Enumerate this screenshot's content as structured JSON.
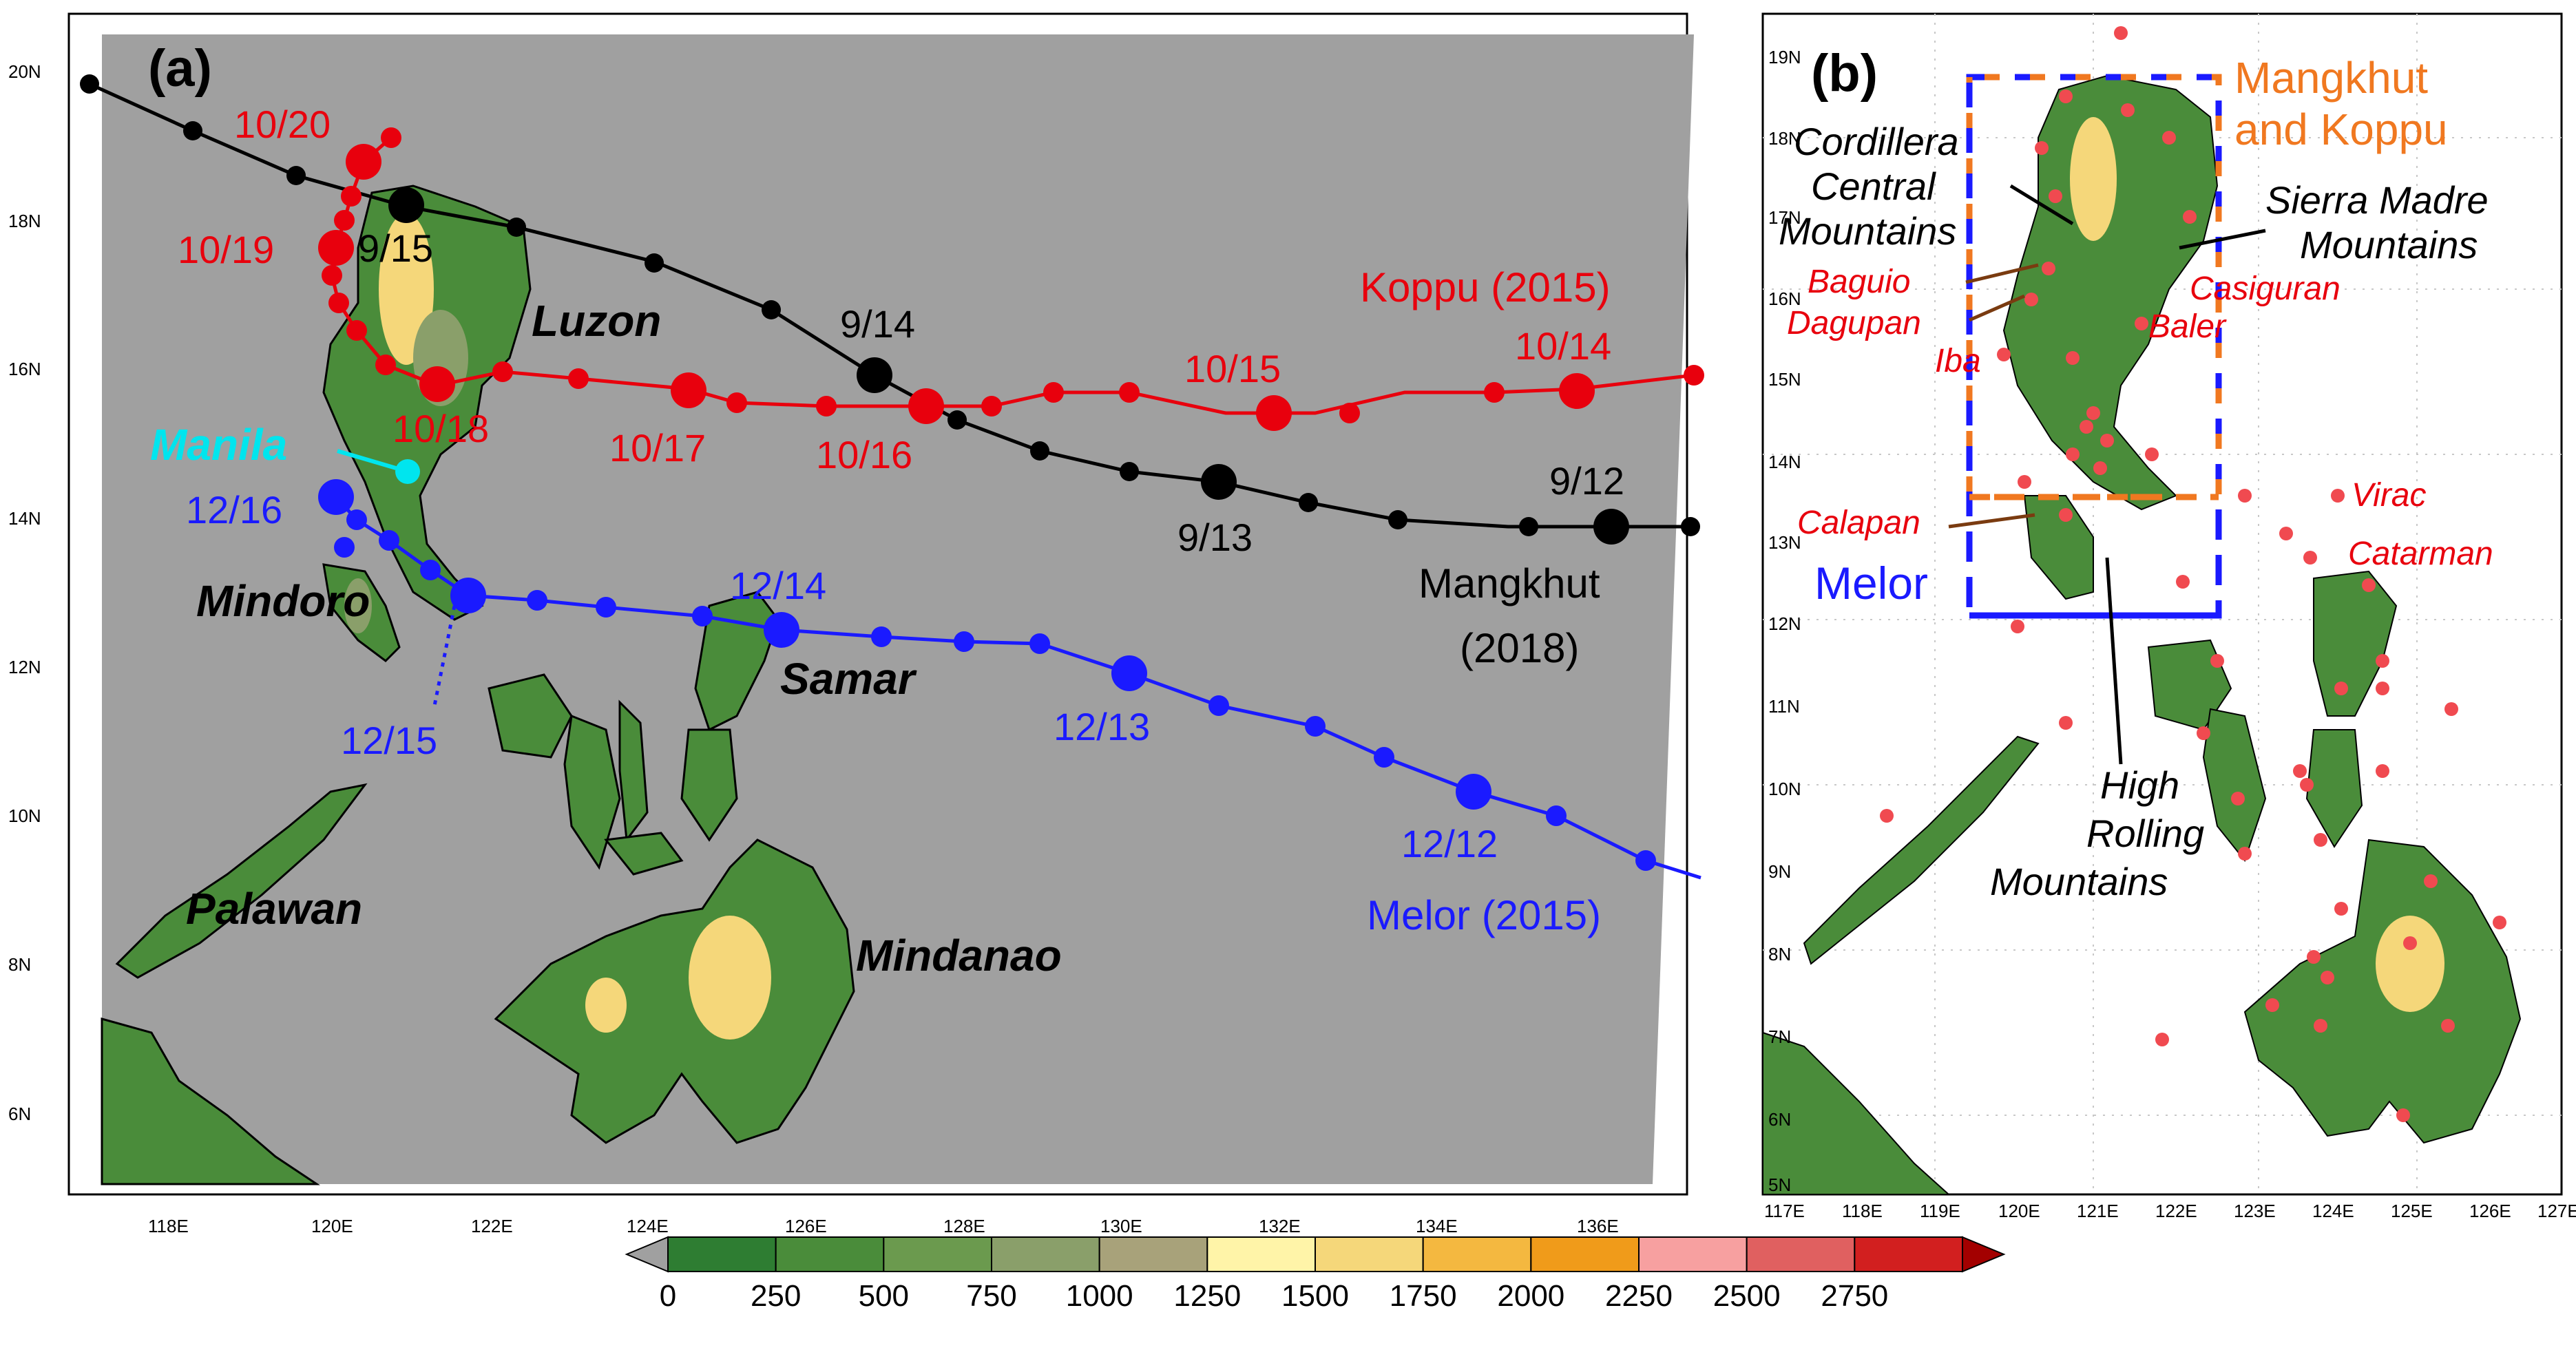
{
  "panel_a": {
    "tag": "(a)",
    "lat_ticks": [
      "20N",
      "18N",
      "16N",
      "14N",
      "12N",
      "10N",
      "8N",
      "6N"
    ],
    "lon_ticks": [
      "118E",
      "120E",
      "122E",
      "124E",
      "126E",
      "128E",
      "130E",
      "132E",
      "134E",
      "136E"
    ],
    "places": {
      "luzon": "Luzon",
      "mindoro": "Mindoro",
      "samar": "Samar",
      "palawan": "Palawan",
      "mindanao": "Mindanao",
      "manila": "Manila"
    },
    "storms": [
      {
        "name": "Mangkhut",
        "year_label": "(2018)",
        "color": "#000000",
        "dates": [
          "9/15",
          "9/14",
          "9/13",
          "9/12"
        ]
      },
      {
        "name": "Koppu (2015)",
        "color": "#e8000d",
        "dates": [
          "10/20",
          "10/19",
          "10/18",
          "10/17",
          "10/16",
          "10/15",
          "10/14"
        ]
      },
      {
        "name": "Melor (2015)",
        "color": "#1a1aff",
        "dates": [
          "12/16",
          "12/15",
          "12/14",
          "12/13",
          "12/12"
        ]
      }
    ],
    "manila_color": "#00e5ee"
  },
  "panel_b": {
    "tag": "(b)",
    "lat_ticks": [
      "19N",
      "18N",
      "17N",
      "16N",
      "15N",
      "14N",
      "13N",
      "12N",
      "11N",
      "10N",
      "9N",
      "8N",
      "7N",
      "6N",
      "5N"
    ],
    "lon_ticks": [
      "117E",
      "118E",
      "119E",
      "120E",
      "121E",
      "122E",
      "123E",
      "124E",
      "125E",
      "126E",
      "127E"
    ],
    "box_labels": {
      "koppu_mangkhut_1": "Mangkhut",
      "koppu_mangkhut_2": "and Koppu",
      "melor": "Melor"
    },
    "mountains": {
      "cordillera_1": "Cordillera",
      "cordillera_2": "Central",
      "cordillera_3": "Mountains",
      "sierra_1": "Sierra Madre",
      "sierra_2": "Mountains",
      "high_1": "High",
      "high_2": "Rolling",
      "high_3": "Mountains"
    },
    "stations": {
      "baguio": "Baguio",
      "dagupan": "Dagupan",
      "iba": "Iba",
      "casiguran": "Casiguran",
      "baler": "Baler",
      "calapan": "Calapan",
      "virac": "Virac",
      "catarman": "Catarman"
    },
    "colors": {
      "orange_box": "#f07820",
      "blue_box": "#1a1aff",
      "station_dot": "#f04a50"
    }
  },
  "colorbar": {
    "ticks": [
      "0",
      "250",
      "500",
      "750",
      "1000",
      "1250",
      "1500",
      "1750",
      "2000",
      "2250",
      "2500",
      "2750"
    ],
    "colors": [
      "#2e7d32",
      "#4a8c3a",
      "#6b9a4e",
      "#8a9f6a",
      "#a8a27a",
      "#fff4a8",
      "#f5d77a",
      "#f4b840",
      "#f09b1a",
      "#f7a0a0",
      "#e06060",
      "#d21f1f",
      "#a30000"
    ],
    "under_color": "#a0a0a0"
  }
}
